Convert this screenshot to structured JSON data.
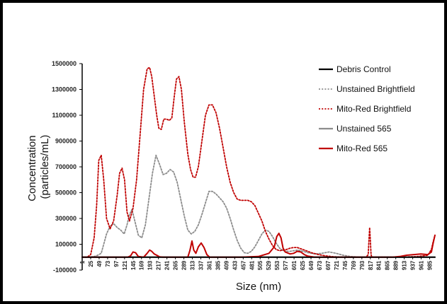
{
  "chart_data": {
    "type": "line",
    "title": "",
    "xlabel": "Size (nm)",
    "ylabel": "Concentration (particles/mL)",
    "ylabel_lines": [
      "Concentration",
      "(particles/mL)"
    ],
    "xlim": [
      1,
      1000
    ],
    "ylim": [
      -100000,
      1500000
    ],
    "y_ticks": [
      -100000,
      100000,
      300000,
      500000,
      700000,
      900000,
      1100000,
      1300000,
      1500000
    ],
    "x_ticks": [
      1,
      25,
      49,
      73,
      97,
      121,
      145,
      169,
      193,
      217,
      241,
      265,
      289,
      313,
      337,
      361,
      385,
      409,
      433,
      457,
      481,
      505,
      529,
      553,
      577,
      601,
      625,
      649,
      673,
      697,
      721,
      745,
      769,
      793,
      817,
      841,
      865,
      889,
      913,
      937,
      961,
      985
    ],
    "grid": false,
    "legend_position": "top-right",
    "series": [
      {
        "name": "Debris Control",
        "color": "#000000",
        "dash": "solid",
        "x": [
          1,
          100,
          200,
          300,
          400,
          500,
          600,
          700,
          800,
          900,
          1000
        ],
        "y": [
          0,
          0,
          0,
          0,
          0,
          0,
          0,
          0,
          0,
          0,
          0
        ]
      },
      {
        "name": "Unstained Brightfield",
        "color": "#8c8c8c",
        "dash": "dotted",
        "x": [
          1,
          20,
          40,
          55,
          70,
          80,
          90,
          100,
          110,
          120,
          128,
          135,
          142,
          150,
          160,
          170,
          180,
          190,
          200,
          210,
          220,
          230,
          240,
          250,
          260,
          270,
          280,
          290,
          300,
          310,
          320,
          330,
          340,
          350,
          360,
          370,
          380,
          390,
          400,
          410,
          420,
          430,
          440,
          450,
          460,
          470,
          480,
          490,
          500,
          510,
          520,
          530,
          540,
          550,
          560,
          570,
          580,
          590,
          600,
          610,
          620,
          640,
          660,
          680,
          700,
          720,
          740,
          760,
          780,
          800,
          900,
          1000
        ],
        "y": [
          0,
          0,
          8000,
          30000,
          180000,
          240000,
          260000,
          230000,
          210000,
          180000,
          250000,
          330000,
          370000,
          280000,
          170000,
          150000,
          250000,
          450000,
          650000,
          790000,
          720000,
          640000,
          650000,
          680000,
          660000,
          580000,
          450000,
          320000,
          210000,
          180000,
          200000,
          250000,
          330000,
          420000,
          510000,
          510000,
          490000,
          460000,
          430000,
          380000,
          300000,
          210000,
          130000,
          70000,
          35000,
          30000,
          45000,
          80000,
          130000,
          180000,
          210000,
          200000,
          160000,
          110000,
          70000,
          50000,
          45000,
          45000,
          50000,
          55000,
          50000,
          35000,
          25000,
          30000,
          40000,
          30000,
          15000,
          5000,
          2000,
          1000,
          0,
          0
        ]
      },
      {
        "name": "Mito-Red Brightfield",
        "color": "#c00000",
        "dash": "dotted",
        "x": [
          1,
          15,
          25,
          35,
          42,
          48,
          55,
          62,
          70,
          80,
          90,
          100,
          107,
          114,
          121,
          128,
          135,
          145,
          155,
          165,
          175,
          185,
          192,
          198,
          205,
          212,
          218,
          225,
          232,
          240,
          248,
          255,
          262,
          268,
          275,
          282,
          290,
          300,
          308,
          315,
          322,
          330,
          340,
          350,
          360,
          370,
          380,
          390,
          400,
          410,
          420,
          430,
          440,
          450,
          460,
          470,
          480,
          490,
          500,
          510,
          520,
          530,
          540,
          550,
          560,
          570,
          580,
          590,
          600,
          610,
          620,
          635,
          650,
          670,
          690,
          710,
          730,
          750,
          770,
          790,
          805,
          811,
          813,
          815,
          817,
          819,
          821,
          830,
          850,
          900,
          950,
          980,
          990,
          995,
          1000
        ],
        "y": [
          0,
          0,
          20000,
          150000,
          400000,
          750000,
          790000,
          600000,
          300000,
          220000,
          280000,
          480000,
          650000,
          690000,
          600000,
          350000,
          280000,
          380000,
          600000,
          950000,
          1300000,
          1460000,
          1470000,
          1400000,
          1250000,
          1100000,
          1000000,
          990000,
          1070000,
          1070000,
          1060000,
          1080000,
          1250000,
          1380000,
          1400000,
          1300000,
          1050000,
          800000,
          680000,
          620000,
          620000,
          700000,
          900000,
          1100000,
          1180000,
          1180000,
          1120000,
          1000000,
          850000,
          700000,
          580000,
          500000,
          450000,
          440000,
          440000,
          440000,
          430000,
          400000,
          340000,
          280000,
          200000,
          140000,
          90000,
          60000,
          50000,
          55000,
          60000,
          70000,
          75000,
          75000,
          65000,
          50000,
          35000,
          20000,
          10000,
          4000,
          2000,
          1000,
          500,
          300,
          500,
          20000,
          130000,
          230000,
          130000,
          20000,
          500,
          300,
          200,
          100,
          5000,
          15000,
          60000,
          120000,
          170000
        ]
      },
      {
        "name": "Unstained 565",
        "color": "#8c8c8c",
        "dash": "solid",
        "x": [
          1,
          1000
        ],
        "y": [
          0,
          0
        ]
      },
      {
        "name": "Mito-Red 565",
        "color": "#c00000",
        "dash": "solid",
        "x": [
          1,
          130,
          138,
          145,
          152,
          160,
          175,
          185,
          192,
          198,
          205,
          212,
          220,
          230,
          300,
          306,
          312,
          317,
          323,
          330,
          338,
          346,
          354,
          362,
          450,
          500,
          530,
          545,
          552,
          558,
          564,
          570,
          576,
          590,
          600,
          610,
          620,
          630,
          640,
          660,
          700,
          800,
          880,
          900,
          920,
          940,
          960,
          980,
          990,
          995,
          1000
        ],
        "y": [
          0,
          0,
          10000,
          40000,
          35000,
          5000,
          0,
          30000,
          55000,
          45000,
          25000,
          15000,
          3000,
          0,
          0,
          50000,
          125000,
          55000,
          30000,
          80000,
          110000,
          75000,
          20000,
          0,
          0,
          5000,
          30000,
          80000,
          160000,
          185000,
          150000,
          70000,
          40000,
          25000,
          30000,
          45000,
          40000,
          20000,
          8000,
          0,
          0,
          0,
          0,
          5000,
          15000,
          20000,
          25000,
          20000,
          40000,
          110000,
          170000
        ]
      }
    ]
  }
}
